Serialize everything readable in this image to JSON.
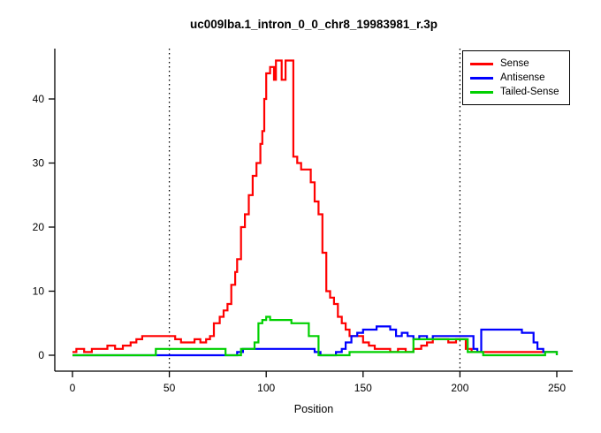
{
  "chart_data": {
    "type": "line",
    "title": "uc009lba.1_intron_0_0_chr8_19983981_r.3p",
    "xlabel": "Position",
    "ylabel": "",
    "xlim": [
      0,
      250
    ],
    "ylim": [
      0,
      46
    ],
    "x_ticks": [
      0,
      50,
      100,
      150,
      200,
      250
    ],
    "y_ticks": [
      0,
      10,
      20,
      30,
      40
    ],
    "grid": false,
    "legend_position": "top-right",
    "vlines": [
      {
        "x": 50,
        "style": "dotted",
        "color": "#000000"
      },
      {
        "x": 200,
        "style": "dotted",
        "color": "#000000"
      }
    ],
    "series": [
      {
        "name": "Sense",
        "color": "#ff0000",
        "points": [
          [
            0,
            0.5
          ],
          [
            2,
            1
          ],
          [
            6,
            0.5
          ],
          [
            10,
            1
          ],
          [
            14,
            1
          ],
          [
            18,
            1.5
          ],
          [
            22,
            1
          ],
          [
            26,
            1.5
          ],
          [
            30,
            2
          ],
          [
            33,
            2.5
          ],
          [
            36,
            3
          ],
          [
            40,
            3
          ],
          [
            46,
            3
          ],
          [
            50,
            3
          ],
          [
            53,
            2.5
          ],
          [
            56,
            2
          ],
          [
            60,
            2
          ],
          [
            63,
            2.5
          ],
          [
            66,
            2
          ],
          [
            69,
            2.5
          ],
          [
            71,
            3
          ],
          [
            73,
            5
          ],
          [
            76,
            6
          ],
          [
            78,
            7
          ],
          [
            80,
            8
          ],
          [
            82,
            11
          ],
          [
            84,
            13
          ],
          [
            85,
            15
          ],
          [
            87,
            20
          ],
          [
            89,
            22
          ],
          [
            91,
            25
          ],
          [
            93,
            28
          ],
          [
            95,
            30
          ],
          [
            97,
            33
          ],
          [
            98,
            35
          ],
          [
            99,
            40
          ],
          [
            100,
            44
          ],
          [
            102,
            45
          ],
          [
            104,
            43
          ],
          [
            105,
            46
          ],
          [
            107,
            46
          ],
          [
            108,
            43
          ],
          [
            110,
            46
          ],
          [
            112,
            46
          ],
          [
            114,
            31
          ],
          [
            116,
            30
          ],
          [
            118,
            29
          ],
          [
            121,
            29
          ],
          [
            123,
            27
          ],
          [
            125,
            24
          ],
          [
            127,
            22
          ],
          [
            129,
            16
          ],
          [
            131,
            10
          ],
          [
            133,
            9
          ],
          [
            135,
            8
          ],
          [
            137,
            6
          ],
          [
            139,
            5
          ],
          [
            141,
            4
          ],
          [
            143,
            3
          ],
          [
            147,
            3
          ],
          [
            150,
            2
          ],
          [
            153,
            1.5
          ],
          [
            156,
            1
          ],
          [
            160,
            1
          ],
          [
            164,
            0.5
          ],
          [
            168,
            1
          ],
          [
            172,
            0.5
          ],
          [
            176,
            1
          ],
          [
            180,
            1.5
          ],
          [
            183,
            2
          ],
          [
            186,
            2.5
          ],
          [
            190,
            2.5
          ],
          [
            194,
            2
          ],
          [
            198,
            2.5
          ],
          [
            201,
            2.5
          ],
          [
            203,
            1
          ],
          [
            206,
            0.5
          ],
          [
            212,
            0.5
          ],
          [
            220,
            0.5
          ],
          [
            228,
            0.5
          ],
          [
            236,
            0.5
          ],
          [
            244,
            0.5
          ],
          [
            250,
            0.5
          ]
        ]
      },
      {
        "name": "Antisense",
        "color": "#0000ff",
        "points": [
          [
            0,
            0
          ],
          [
            20,
            0
          ],
          [
            40,
            0
          ],
          [
            60,
            0
          ],
          [
            80,
            0
          ],
          [
            85,
            0.5
          ],
          [
            88,
            1
          ],
          [
            95,
            1
          ],
          [
            105,
            1
          ],
          [
            115,
            1
          ],
          [
            122,
            1
          ],
          [
            125,
            0.5
          ],
          [
            128,
            0
          ],
          [
            133,
            0
          ],
          [
            136,
            0.5
          ],
          [
            139,
            1
          ],
          [
            141,
            2
          ],
          [
            144,
            3
          ],
          [
            147,
            3.5
          ],
          [
            150,
            4
          ],
          [
            154,
            4
          ],
          [
            157,
            4.5
          ],
          [
            161,
            4.5
          ],
          [
            164,
            4
          ],
          [
            167,
            3
          ],
          [
            170,
            3.5
          ],
          [
            173,
            3
          ],
          [
            176,
            2.5
          ],
          [
            179,
            3
          ],
          [
            183,
            2.5
          ],
          [
            186,
            3
          ],
          [
            190,
            3
          ],
          [
            194,
            3
          ],
          [
            198,
            3
          ],
          [
            202,
            3
          ],
          [
            205,
            3
          ],
          [
            207,
            1
          ],
          [
            209,
            0.5
          ],
          [
            211,
            4
          ],
          [
            215,
            4
          ],
          [
            220,
            4
          ],
          [
            225,
            4
          ],
          [
            229,
            4
          ],
          [
            232,
            3.5
          ],
          [
            236,
            3.5
          ],
          [
            238,
            2
          ],
          [
            240,
            1
          ],
          [
            243,
            0.5
          ],
          [
            247,
            0.5
          ],
          [
            250,
            0
          ]
        ]
      },
      {
        "name": "Tailed-Sense",
        "color": "#00d000",
        "points": [
          [
            0,
            0
          ],
          [
            10,
            0
          ],
          [
            20,
            0
          ],
          [
            30,
            0
          ],
          [
            40,
            0
          ],
          [
            43,
            1
          ],
          [
            48,
            1
          ],
          [
            54,
            1
          ],
          [
            60,
            1
          ],
          [
            66,
            1
          ],
          [
            72,
            1
          ],
          [
            76,
            1
          ],
          [
            79,
            0
          ],
          [
            83,
            0
          ],
          [
            87,
            1
          ],
          [
            91,
            1
          ],
          [
            94,
            2
          ],
          [
            96,
            5
          ],
          [
            98,
            5.5
          ],
          [
            100,
            6
          ],
          [
            102,
            5.5
          ],
          [
            106,
            5.5
          ],
          [
            110,
            5.5
          ],
          [
            113,
            5
          ],
          [
            117,
            5
          ],
          [
            120,
            5
          ],
          [
            122,
            3
          ],
          [
            125,
            3
          ],
          [
            127,
            0
          ],
          [
            132,
            0
          ],
          [
            138,
            0
          ],
          [
            143,
            0.5
          ],
          [
            148,
            0.5
          ],
          [
            154,
            0.5
          ],
          [
            160,
            0.5
          ],
          [
            166,
            0.5
          ],
          [
            172,
            0.5
          ],
          [
            176,
            2.5
          ],
          [
            181,
            2.5
          ],
          [
            186,
            2.5
          ],
          [
            191,
            2.5
          ],
          [
            196,
            2.5
          ],
          [
            200,
            2.5
          ],
          [
            204,
            0.5
          ],
          [
            208,
            0.5
          ],
          [
            212,
            0
          ],
          [
            218,
            0
          ],
          [
            225,
            0
          ],
          [
            232,
            0
          ],
          [
            239,
            0
          ],
          [
            244,
            0.5
          ],
          [
            250,
            0
          ]
        ]
      }
    ]
  }
}
